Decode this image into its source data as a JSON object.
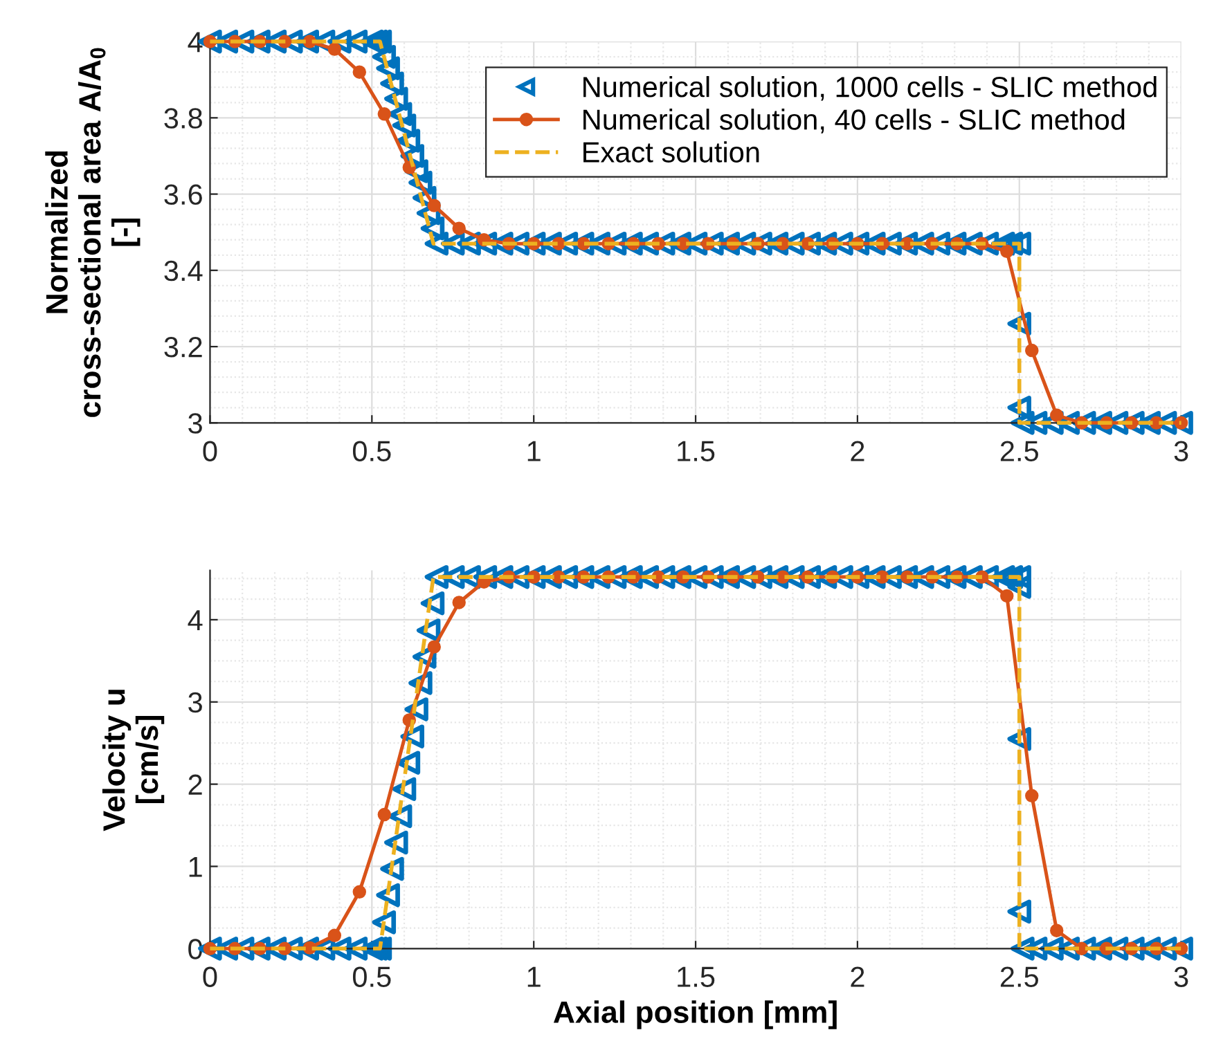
{
  "chart_data": [
    {
      "type": "line",
      "ylabel": "Normalized\ncross-sectional area A/A$_{0}$\n[-]",
      "xlim": [
        0,
        3
      ],
      "xticks": [
        0,
        0.5,
        1,
        1.5,
        2,
        2.5,
        3
      ],
      "ylim": [
        3,
        4
      ],
      "yticks": [
        3,
        3.2,
        3.4,
        3.6,
        3.8,
        4
      ],
      "grid": true,
      "legend": "top right",
      "series": [
        {
          "name": "Numerical solution, 1000 cells - SLIC method",
          "type": "scatter",
          "marker": "triangle",
          "color": "#0072bd",
          "x": [
            0,
            0.05,
            0.1,
            0.15,
            0.2,
            0.25,
            0.3,
            0.35,
            0.4,
            0.45,
            0.5,
            0.5125,
            0.525,
            0.5375,
            0.55,
            0.5625,
            0.575,
            0.5875,
            0.6,
            0.6125,
            0.625,
            0.6375,
            0.65,
            0.6625,
            0.675,
            0.6875,
            0.7,
            0.75,
            0.8,
            0.85,
            0.9,
            0.95,
            1,
            1.05,
            1.1,
            1.15,
            1.2,
            1.25,
            1.3,
            1.35,
            1.4,
            1.45,
            1.5,
            1.55,
            1.6,
            1.65,
            1.7,
            1.75,
            1.8,
            1.85,
            1.9,
            1.95,
            2,
            2.05,
            2.1,
            2.15,
            2.2,
            2.25,
            2.3,
            2.35,
            2.4,
            2.45,
            2.475,
            2.5,
            2.5,
            2.5,
            2.51,
            2.55,
            2.6,
            2.65,
            2.7,
            2.75,
            2.8,
            2.85,
            2.9,
            2.95,
            3
          ],
          "values": [
            4,
            4,
            4,
            4,
            4,
            4,
            4,
            4,
            4,
            4,
            4,
            4,
            4,
            3.96,
            3.93,
            3.89,
            3.85,
            3.81,
            3.78,
            3.74,
            3.7,
            3.66,
            3.63,
            3.59,
            3.55,
            3.51,
            3.47,
            3.47,
            3.47,
            3.47,
            3.47,
            3.47,
            3.47,
            3.47,
            3.47,
            3.47,
            3.47,
            3.47,
            3.47,
            3.47,
            3.47,
            3.47,
            3.47,
            3.47,
            3.47,
            3.47,
            3.47,
            3.47,
            3.47,
            3.47,
            3.47,
            3.47,
            3.47,
            3.47,
            3.47,
            3.47,
            3.47,
            3.47,
            3.47,
            3.47,
            3.47,
            3.47,
            3.47,
            3.47,
            3.26,
            3.04,
            3,
            3,
            3,
            3,
            3,
            3,
            3,
            3,
            3,
            3,
            3
          ]
        },
        {
          "name": "Numerical solution, 40 cells - SLIC method",
          "marker": "circle",
          "line_style": "solid",
          "color": "#d95319",
          "x": [
            0,
            0.0769,
            0.1538,
            0.2308,
            0.3077,
            0.3846,
            0.4615,
            0.5385,
            0.6154,
            0.6923,
            0.7692,
            0.8462,
            0.9231,
            1,
            1.0769,
            1.1538,
            1.2308,
            1.3077,
            1.3846,
            1.4615,
            1.5385,
            1.6154,
            1.6923,
            1.7692,
            1.8462,
            1.9231,
            2,
            2.0769,
            2.1538,
            2.2308,
            2.3077,
            2.3846,
            2.4615,
            2.5385,
            2.6154,
            2.6923,
            2.7692,
            2.8462,
            2.9231,
            3
          ],
          "values": [
            4,
            4,
            4,
            4,
            4,
            3.98,
            3.92,
            3.81,
            3.67,
            3.57,
            3.51,
            3.48,
            3.47,
            3.47,
            3.47,
            3.47,
            3.47,
            3.47,
            3.47,
            3.47,
            3.47,
            3.47,
            3.47,
            3.47,
            3.47,
            3.47,
            3.47,
            3.47,
            3.47,
            3.47,
            3.47,
            3.47,
            3.45,
            3.19,
            3.02,
            3,
            3,
            3,
            3,
            3
          ]
        },
        {
          "name": "Exact solution",
          "marker": "none",
          "line_style": "dashed",
          "color": "#edb120",
          "x": [
            0,
            0.525,
            0.69,
            2.5,
            2.5,
            3
          ],
          "values": [
            4,
            4,
            3.47,
            3.47,
            3,
            3
          ]
        }
      ]
    },
    {
      "type": "line",
      "xlabel": "Axial position [mm]",
      "ylabel": "Velocity u\n[cm/s]",
      "xlim": [
        0,
        3
      ],
      "xticks": [
        0,
        0.5,
        1,
        1.5,
        2,
        2.5,
        3
      ],
      "ylim": [
        0,
        4.6
      ],
      "yticks": [
        0,
        1,
        2,
        3,
        4
      ],
      "grid": true,
      "series": [
        {
          "type": "scatter",
          "marker": "triangle",
          "color": "#0072bd",
          "x": [
            0,
            0.05,
            0.1,
            0.15,
            0.2,
            0.25,
            0.3,
            0.35,
            0.4,
            0.45,
            0.5,
            0.5125,
            0.525,
            0.5375,
            0.55,
            0.5625,
            0.575,
            0.5875,
            0.6,
            0.6125,
            0.625,
            0.6375,
            0.65,
            0.6625,
            0.675,
            0.6875,
            0.7,
            0.75,
            0.8,
            0.85,
            0.9,
            0.95,
            1,
            1.05,
            1.1,
            1.15,
            1.2,
            1.25,
            1.3,
            1.35,
            1.4,
            1.45,
            1.5,
            1.55,
            1.6,
            1.65,
            1.7,
            1.75,
            1.8,
            1.85,
            1.9,
            1.95,
            2,
            2.05,
            2.1,
            2.15,
            2.2,
            2.25,
            2.3,
            2.35,
            2.4,
            2.45,
            2.475,
            2.5,
            2.5,
            2.5,
            2.5,
            2.51,
            2.55,
            2.6,
            2.65,
            2.7,
            2.75,
            2.8,
            2.85,
            2.9,
            2.95,
            3
          ],
          "values": [
            0,
            0,
            0,
            0,
            0,
            0,
            0,
            0,
            0,
            0,
            0,
            0,
            0,
            0.32,
            0.65,
            0.97,
            1.29,
            1.61,
            1.94,
            2.26,
            2.58,
            2.91,
            3.23,
            3.55,
            3.87,
            4.2,
            4.52,
            4.52,
            4.52,
            4.52,
            4.52,
            4.52,
            4.52,
            4.52,
            4.52,
            4.52,
            4.52,
            4.52,
            4.52,
            4.52,
            4.52,
            4.52,
            4.52,
            4.52,
            4.52,
            4.52,
            4.52,
            4.52,
            4.52,
            4.52,
            4.52,
            4.52,
            4.52,
            4.52,
            4.52,
            4.52,
            4.52,
            4.52,
            4.52,
            4.52,
            4.52,
            4.52,
            4.52,
            4.52,
            4.4,
            2.55,
            0.45,
            0,
            0,
            0,
            0,
            0,
            0,
            0,
            0,
            0,
            0,
            0
          ]
        },
        {
          "marker": "circle",
          "line_style": "solid",
          "color": "#d95319",
          "x": [
            0,
            0.0769,
            0.1538,
            0.2308,
            0.3077,
            0.3846,
            0.4615,
            0.5385,
            0.6154,
            0.6923,
            0.7692,
            0.8462,
            0.9231,
            1,
            1.0769,
            1.1538,
            1.2308,
            1.3077,
            1.3846,
            1.4615,
            1.5385,
            1.6154,
            1.6923,
            1.7692,
            1.8462,
            1.9231,
            2,
            2.0769,
            2.1538,
            2.2308,
            2.3077,
            2.3846,
            2.4615,
            2.5385,
            2.6154,
            2.6923,
            2.7692,
            2.8462,
            2.9231,
            3
          ],
          "values": [
            0,
            0,
            0,
            0,
            0.01,
            0.16,
            0.69,
            1.63,
            2.78,
            3.67,
            4.21,
            4.46,
            4.52,
            4.52,
            4.52,
            4.52,
            4.52,
            4.52,
            4.52,
            4.52,
            4.52,
            4.52,
            4.52,
            4.52,
            4.52,
            4.52,
            4.52,
            4.52,
            4.52,
            4.52,
            4.52,
            4.52,
            4.29,
            1.86,
            0.22,
            0,
            0,
            0,
            0,
            0
          ]
        },
        {
          "marker": "none",
          "line_style": "dashed",
          "color": "#edb120",
          "x": [
            0,
            0.525,
            0.69,
            2.5,
            2.5,
            3
          ],
          "values": [
            0,
            0,
            4.52,
            4.52,
            0,
            0
          ]
        }
      ]
    }
  ]
}
